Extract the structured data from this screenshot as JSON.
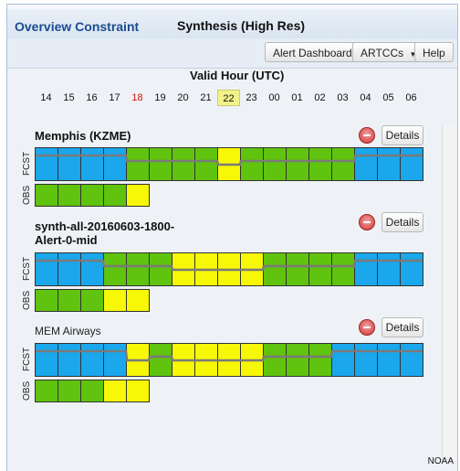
{
  "header": {
    "overview_label": "Overview Constraint",
    "view_title": "Synthesis (High Res)"
  },
  "toolbar": {
    "alert_dashboard_label": "Alert Dashboard",
    "artccs_label": "ARTCCs",
    "help_label": "Help"
  },
  "timeline": {
    "title": "Valid Hour (UTC)",
    "hours": [
      "14",
      "15",
      "16",
      "17",
      "18",
      "19",
      "20",
      "21",
      "22",
      "23",
      "00",
      "01",
      "02",
      "03",
      "04",
      "05",
      "06"
    ],
    "red_hour": "18",
    "highlight_hour": "22"
  },
  "colors": {
    "blue": "#1aa7ec",
    "green": "#60c30e",
    "yellow": "#f7f708",
    "trend": "#7a7a7a"
  },
  "rows": [
    {
      "name": "Memphis (KZME)",
      "name_style": "bold",
      "details_label": "Details",
      "fcst_label": "FCST",
      "obs_label": "OBS",
      "fcst": [
        "blue",
        "blue",
        "blue",
        "blue",
        "green",
        "green",
        "green",
        "green",
        "yellow",
        "green",
        "green",
        "green",
        "green",
        "green",
        "blue",
        "blue",
        "blue"
      ],
      "obs": [
        "green",
        "green",
        "green",
        "green",
        "yellow"
      ]
    },
    {
      "name": "synth-all-20160603-1800-Alert-0-mid",
      "name_style": "bold",
      "details_label": "Details",
      "fcst_label": "FCST",
      "obs_label": "OBS",
      "fcst": [
        "blue",
        "blue",
        "blue",
        "green",
        "green",
        "green",
        "yellow",
        "yellow",
        "yellow",
        "yellow",
        "green",
        "green",
        "green",
        "green",
        "blue",
        "blue",
        "blue"
      ],
      "obs": [
        "green",
        "green",
        "green",
        "yellow",
        "yellow"
      ]
    },
    {
      "name": "MEM Airways",
      "name_style": "normal",
      "details_label": "Details",
      "fcst_label": "FCST",
      "obs_label": "OBS",
      "fcst": [
        "blue",
        "blue",
        "blue",
        "blue",
        "yellow",
        "green",
        "yellow",
        "yellow",
        "yellow",
        "yellow",
        "green",
        "green",
        "green",
        "blue",
        "blue",
        "blue",
        "blue"
      ],
      "obs": [
        "green",
        "green",
        "green",
        "yellow",
        "yellow"
      ]
    }
  ],
  "footer": {
    "credit": "NOAA"
  }
}
